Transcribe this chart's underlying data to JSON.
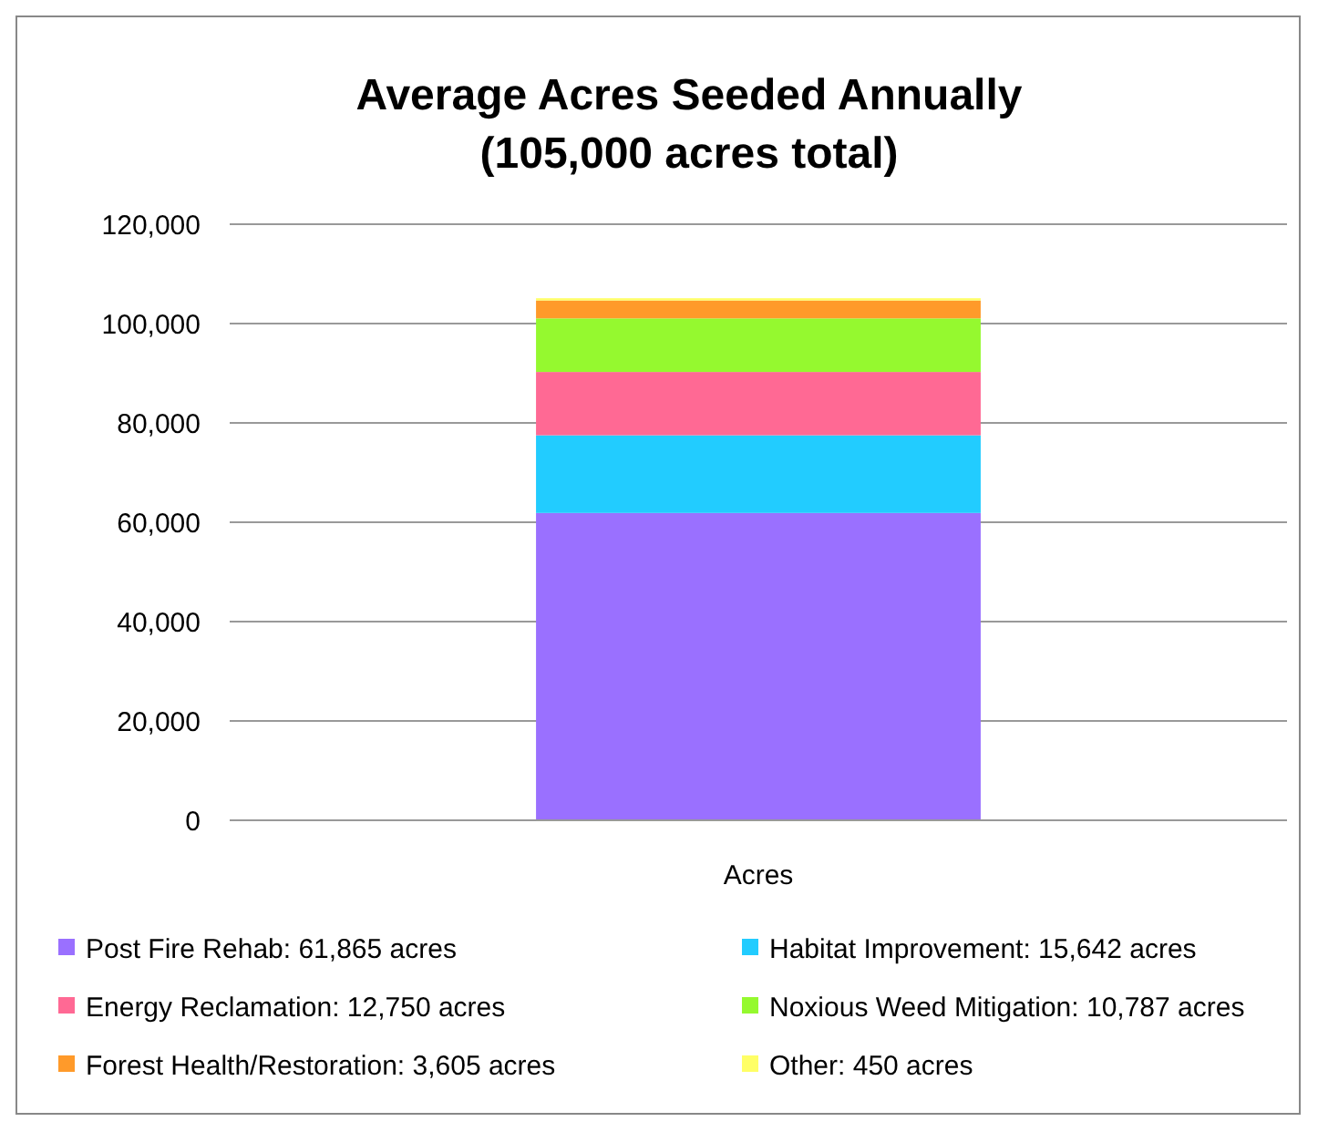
{
  "chart_data": {
    "type": "bar",
    "title": "Average Acres Seeded Annually\n(105,000 acres total)",
    "categories": [
      "Acres"
    ],
    "stacked": true,
    "series": [
      {
        "name": "Post Fire Rehab: 61,865 acres",
        "color": "#9a70ff",
        "values": [
          61865
        ]
      },
      {
        "name": "Habitat Improvement: 15,642 acres",
        "color": "#22ccff",
        "values": [
          15642
        ]
      },
      {
        "name": "Energy Reclamation: 12,750 acres",
        "color": "#ff6994",
        "values": [
          12750
        ]
      },
      {
        "name": "Noxious Weed Mitigation: 10,787 acres",
        "color": "#95f92f",
        "values": [
          10787
        ]
      },
      {
        "name": "Forest Health/Restoration: 3,605 acres",
        "color": "#ff9a2a",
        "values": [
          3605
        ]
      },
      {
        "name": "Other: 450 acres",
        "color": "#ffff66",
        "values": [
          450
        ]
      }
    ],
    "ylim": [
      0,
      120000
    ],
    "yticks": [
      {
        "value": 0,
        "label": "0"
      },
      {
        "value": 20000,
        "label": "20,000"
      },
      {
        "value": 40000,
        "label": "40,000"
      },
      {
        "value": 60000,
        "label": "60,000"
      },
      {
        "value": 80000,
        "label": "80,000"
      },
      {
        "value": 100000,
        "label": "100,000"
      },
      {
        "value": 120000,
        "label": "120,000"
      }
    ],
    "grid": "y",
    "legend": "bottom"
  }
}
